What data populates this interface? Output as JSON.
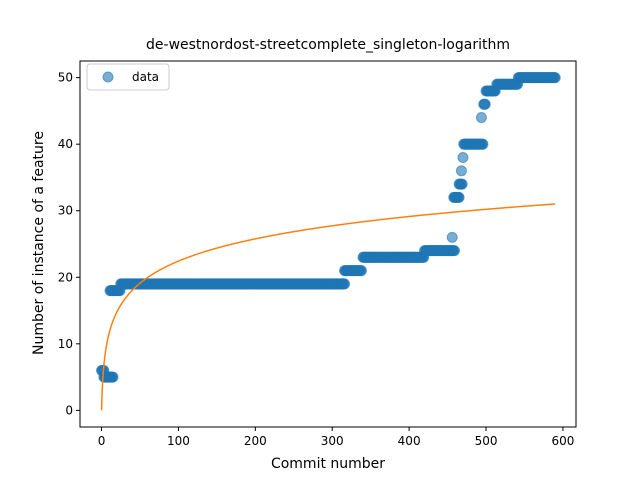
{
  "chart_data": {
    "type": "scatter",
    "title": "de-westnordost-streetcomplete_singleton-logarithm",
    "xlabel": "Commit number",
    "ylabel": "Number of instance of a feature",
    "xlim": [
      -28,
      617
    ],
    "ylim": [
      -2.5,
      52.5
    ],
    "xticks": [
      0,
      100,
      200,
      300,
      400,
      500,
      600
    ],
    "yticks": [
      0,
      10,
      20,
      30,
      40,
      50
    ],
    "grid": false,
    "legend": {
      "position": "top-left",
      "entries": [
        "data"
      ]
    },
    "colors": {
      "data": "#1f77b4",
      "fit": "#ff7f0e"
    },
    "series": [
      {
        "name": "data",
        "kind": "scatter",
        "segments": [
          {
            "x_start": 0,
            "x_end": 3,
            "y": 6
          },
          {
            "x_start": 3,
            "x_end": 15,
            "y": 5
          },
          {
            "x_start": 11,
            "x_end": 24,
            "y": 18
          },
          {
            "x_start": 25,
            "x_end": 316,
            "y": 19
          },
          {
            "x_start": 316,
            "x_end": 338,
            "y": 21
          },
          {
            "x_start": 340,
            "x_end": 419,
            "y": 23
          },
          {
            "x_start": 420,
            "x_end": 459,
            "y": 24
          },
          {
            "x_start": 456,
            "x_end": 456,
            "y": 26
          },
          {
            "x_start": 458,
            "x_end": 465,
            "y": 32
          },
          {
            "x_start": 465,
            "x_end": 469,
            "y": 34
          },
          {
            "x_start": 468,
            "x_end": 468,
            "y": 36
          },
          {
            "x_start": 470,
            "x_end": 470,
            "y": 38
          },
          {
            "x_start": 471,
            "x_end": 496,
            "y": 40
          },
          {
            "x_start": 494,
            "x_end": 494,
            "y": 44
          },
          {
            "x_start": 497,
            "x_end": 499,
            "y": 46
          },
          {
            "x_start": 500,
            "x_end": 512,
            "y": 48
          },
          {
            "x_start": 514,
            "x_end": 541,
            "y": 49
          },
          {
            "x_start": 542,
            "x_end": 590,
            "y": 50
          }
        ]
      },
      {
        "kind": "line",
        "function": "logarithm",
        "x_range": [
          0,
          590
        ],
        "coefficients": {
          "a": 4.86,
          "b": 1.0
        }
      }
    ]
  }
}
